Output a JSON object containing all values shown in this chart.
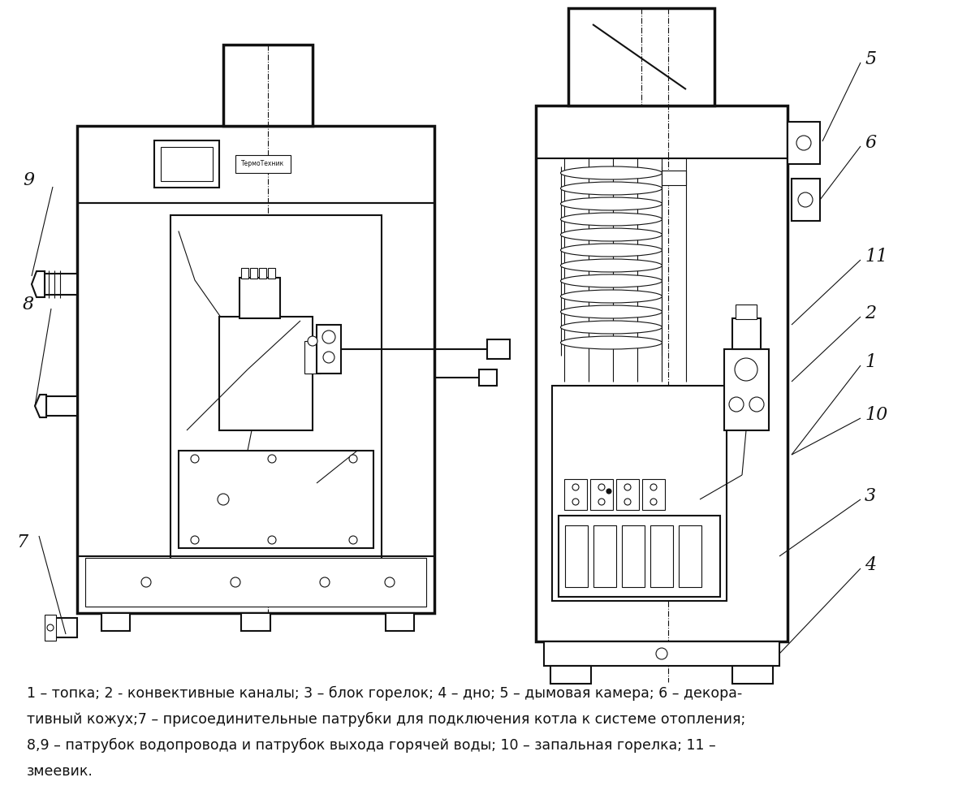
{
  "bg_color": "#ffffff",
  "lc": "#111111",
  "caption_lines": [
    "1 – топка; 2 - конвективные каналы; 3 – блок горелок; 4 – дно; 5 – дымовая камера; 6 – декора-",
    "тивный кожух;7 – присоединительные патрубки для подключения котла к системе отопления;",
    "8,9 – патрубок водопровода и патрубок выхода горячей воды; 10 – запальная горелка; 11 –",
    "змеевик."
  ],
  "figsize": [
    11.96,
    10.0
  ],
  "dpi": 100
}
